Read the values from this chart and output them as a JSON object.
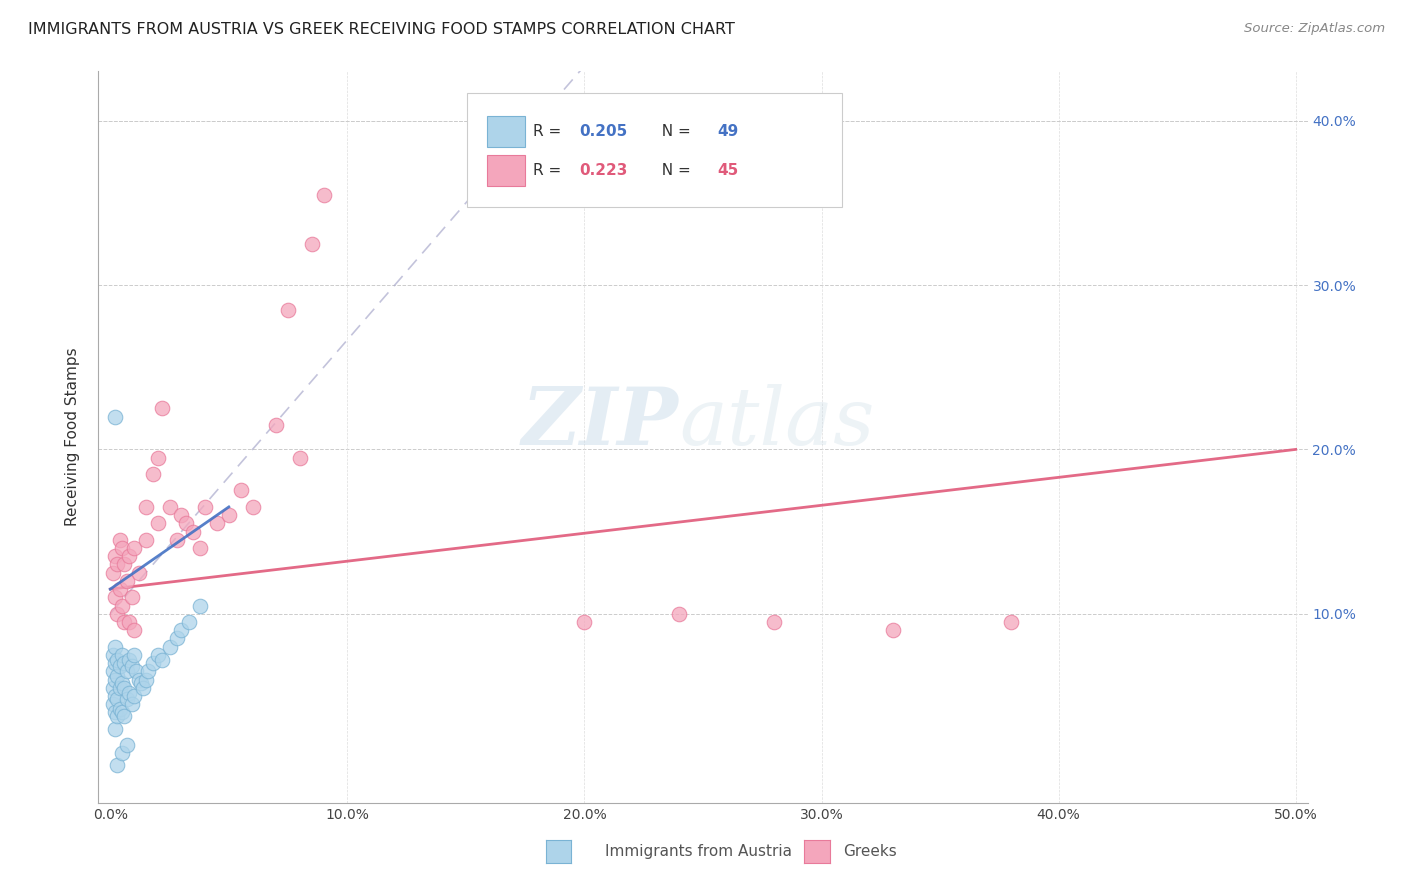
{
  "title": "IMMIGRANTS FROM AUSTRIA VS GREEK RECEIVING FOOD STAMPS CORRELATION CHART",
  "source": "Source: ZipAtlas.com",
  "ylabel": "Receiving Food Stamps",
  "xlim": [
    0.0,
    0.5
  ],
  "ylim": [
    -0.01,
    0.43
  ],
  "color_austria": "#aed4ea",
  "color_austria_edge": "#7ab3d4",
  "color_greek": "#f4a6bc",
  "color_greek_edge": "#e87a9a",
  "color_greek_line": "#e05a7a",
  "color_austria_line": "#4472C4",
  "color_dashed": "#aaaacc",
  "watermark_zip": "#c5d8e8",
  "watermark_atlas": "#ccdde8",
  "austria_x": [
    0.001,
    0.001,
    0.001,
    0.001,
    0.002,
    0.002,
    0.002,
    0.002,
    0.002,
    0.002,
    0.003,
    0.003,
    0.003,
    0.003,
    0.004,
    0.004,
    0.004,
    0.005,
    0.005,
    0.005,
    0.006,
    0.006,
    0.006,
    0.007,
    0.007,
    0.008,
    0.008,
    0.009,
    0.009,
    0.01,
    0.01,
    0.011,
    0.012,
    0.013,
    0.014,
    0.015,
    0.016,
    0.018,
    0.02,
    0.022,
    0.025,
    0.028,
    0.03,
    0.033,
    0.038,
    0.002,
    0.003,
    0.005,
    0.007
  ],
  "austria_y": [
    0.075,
    0.065,
    0.055,
    0.045,
    0.08,
    0.07,
    0.06,
    0.05,
    0.04,
    0.03,
    0.072,
    0.062,
    0.048,
    0.038,
    0.068,
    0.055,
    0.042,
    0.075,
    0.058,
    0.04,
    0.07,
    0.055,
    0.038,
    0.065,
    0.048,
    0.072,
    0.052,
    0.068,
    0.045,
    0.075,
    0.05,
    0.065,
    0.06,
    0.058,
    0.055,
    0.06,
    0.065,
    0.07,
    0.075,
    0.072,
    0.08,
    0.085,
    0.09,
    0.095,
    0.105,
    0.22,
    0.008,
    0.015,
    0.02
  ],
  "greek_x": [
    0.001,
    0.002,
    0.002,
    0.003,
    0.003,
    0.004,
    0.004,
    0.005,
    0.005,
    0.006,
    0.006,
    0.007,
    0.008,
    0.008,
    0.009,
    0.01,
    0.01,
    0.012,
    0.015,
    0.015,
    0.018,
    0.02,
    0.02,
    0.022,
    0.025,
    0.028,
    0.03,
    0.032,
    0.035,
    0.038,
    0.04,
    0.045,
    0.05,
    0.055,
    0.06,
    0.07,
    0.075,
    0.08,
    0.085,
    0.09,
    0.2,
    0.24,
    0.28,
    0.33,
    0.38
  ],
  "greek_y": [
    0.125,
    0.135,
    0.11,
    0.13,
    0.1,
    0.145,
    0.115,
    0.14,
    0.105,
    0.13,
    0.095,
    0.12,
    0.135,
    0.095,
    0.11,
    0.14,
    0.09,
    0.125,
    0.165,
    0.145,
    0.185,
    0.155,
    0.195,
    0.225,
    0.165,
    0.145,
    0.16,
    0.155,
    0.15,
    0.14,
    0.165,
    0.155,
    0.16,
    0.175,
    0.165,
    0.215,
    0.285,
    0.195,
    0.325,
    0.355,
    0.095,
    0.1,
    0.095,
    0.09,
    0.095
  ],
  "legend_R1": "0.205",
  "legend_N1": "49",
  "legend_R2": "0.223",
  "legend_N2": "45"
}
